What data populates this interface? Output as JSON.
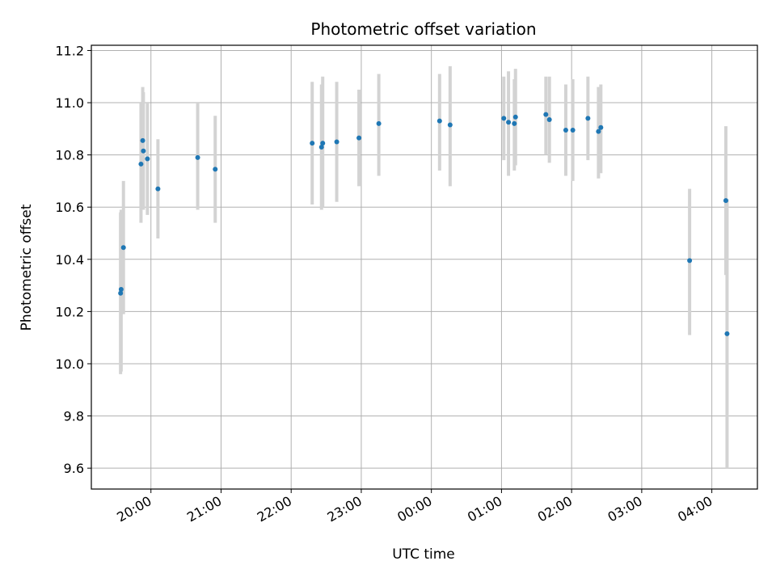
{
  "chart_data": {
    "type": "scatter",
    "title": "Photometric offset variation",
    "xlabel": "UTC time",
    "ylabel": "Photometric offset",
    "x_axis": "time (UTC, hours; 24+ = next day)",
    "xlim": [
      19.15,
      28.65
    ],
    "ylim": [
      9.52,
      11.22
    ],
    "grid": true,
    "marker_color": "#1f77b4",
    "errorbar_color": "#d3d3d3",
    "x_ticks": [
      {
        "value": 20,
        "label": "20:00"
      },
      {
        "value": 21,
        "label": "21:00"
      },
      {
        "value": 22,
        "label": "22:00"
      },
      {
        "value": 23,
        "label": "23:00"
      },
      {
        "value": 24,
        "label": "00:00"
      },
      {
        "value": 25,
        "label": "01:00"
      },
      {
        "value": 26,
        "label": "02:00"
      },
      {
        "value": 27,
        "label": "03:00"
      },
      {
        "value": 28,
        "label": "04:00"
      }
    ],
    "y_ticks": [
      {
        "value": 9.6,
        "label": "9.6"
      },
      {
        "value": 9.8,
        "label": "9.8"
      },
      {
        "value": 10.0,
        "label": "10.0"
      },
      {
        "value": 10.2,
        "label": "10.2"
      },
      {
        "value": 10.4,
        "label": "10.4"
      },
      {
        "value": 10.6,
        "label": "10.6"
      },
      {
        "value": 10.8,
        "label": "10.8"
      },
      {
        "value": 11.0,
        "label": "11.0"
      },
      {
        "value": 11.2,
        "label": "11.2"
      }
    ],
    "points": [
      {
        "x": 19.567,
        "y": 10.27,
        "lo": 9.96,
        "hi": 10.58
      },
      {
        "x": 19.575,
        "y": 10.285,
        "lo": 9.97,
        "hi": 10.59
      },
      {
        "x": 19.608,
        "y": 10.445,
        "lo": 10.19,
        "hi": 10.7
      },
      {
        "x": 19.858,
        "y": 10.765,
        "lo": 10.54,
        "hi": 11.0
      },
      {
        "x": 19.883,
        "y": 10.855,
        "lo": 10.64,
        "hi": 11.06
      },
      {
        "x": 19.892,
        "y": 10.815,
        "lo": 10.59,
        "hi": 11.04
      },
      {
        "x": 19.95,
        "y": 10.785,
        "lo": 10.57,
        "hi": 11.0
      },
      {
        "x": 20.1,
        "y": 10.67,
        "lo": 10.48,
        "hi": 10.86
      },
      {
        "x": 20.667,
        "y": 10.79,
        "lo": 10.59,
        "hi": 11.0
      },
      {
        "x": 20.917,
        "y": 10.745,
        "lo": 10.54,
        "hi": 10.95
      },
      {
        "x": 22.3,
        "y": 10.845,
        "lo": 10.61,
        "hi": 11.08
      },
      {
        "x": 22.433,
        "y": 10.83,
        "lo": 10.59,
        "hi": 11.07
      },
      {
        "x": 22.45,
        "y": 10.845,
        "lo": 10.6,
        "hi": 11.1
      },
      {
        "x": 22.65,
        "y": 10.85,
        "lo": 10.62,
        "hi": 11.08
      },
      {
        "x": 22.967,
        "y": 10.865,
        "lo": 10.68,
        "hi": 11.05
      },
      {
        "x": 23.25,
        "y": 10.92,
        "lo": 10.72,
        "hi": 11.11
      },
      {
        "x": 24.117,
        "y": 10.93,
        "lo": 10.74,
        "hi": 11.11
      },
      {
        "x": 24.267,
        "y": 10.915,
        "lo": 10.68,
        "hi": 11.14
      },
      {
        "x": 25.033,
        "y": 10.94,
        "lo": 10.78,
        "hi": 11.1
      },
      {
        "x": 25.1,
        "y": 10.925,
        "lo": 10.72,
        "hi": 11.12
      },
      {
        "x": 25.183,
        "y": 10.92,
        "lo": 10.74,
        "hi": 11.09
      },
      {
        "x": 25.2,
        "y": 10.945,
        "lo": 10.76,
        "hi": 11.13
      },
      {
        "x": 25.633,
        "y": 10.955,
        "lo": 10.8,
        "hi": 11.1
      },
      {
        "x": 25.683,
        "y": 10.935,
        "lo": 10.77,
        "hi": 11.1
      },
      {
        "x": 25.917,
        "y": 10.895,
        "lo": 10.72,
        "hi": 11.07
      },
      {
        "x": 26.017,
        "y": 10.895,
        "lo": 10.7,
        "hi": 11.09
      },
      {
        "x": 26.233,
        "y": 10.94,
        "lo": 10.78,
        "hi": 11.1
      },
      {
        "x": 26.383,
        "y": 10.89,
        "lo": 10.71,
        "hi": 11.06
      },
      {
        "x": 26.417,
        "y": 10.905,
        "lo": 10.73,
        "hi": 11.07
      },
      {
        "x": 27.683,
        "y": 10.395,
        "lo": 10.11,
        "hi": 10.67
      },
      {
        "x": 28.2,
        "y": 10.625,
        "lo": 10.34,
        "hi": 10.91
      },
      {
        "x": 28.217,
        "y": 10.115,
        "lo": 9.6,
        "hi": 10.63
      }
    ]
  }
}
